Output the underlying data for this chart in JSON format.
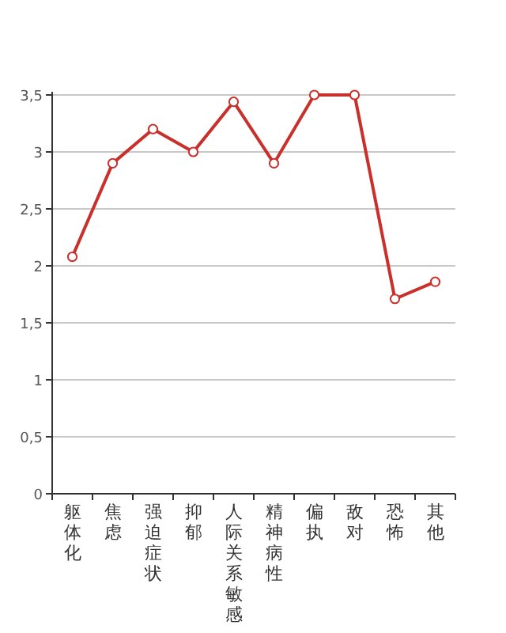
{
  "chart_data": {
    "type": "line",
    "categories": [
      "躯体化",
      "焦虑",
      "强迫症状",
      "抑郁",
      "人际关系敏感",
      "精神病性",
      "偏执",
      "敌对",
      "恐怖",
      "其他"
    ],
    "series": [
      {
        "color": "#c9302c",
        "values": [
          2.08,
          2.9,
          3.2,
          3.0,
          3.44,
          2.9,
          3.5,
          3.5,
          1.71,
          1.86
        ]
      }
    ],
    "ylim": [
      0,
      3.5
    ],
    "yticks": [
      0,
      {
        "value": 0.5,
        "label": "0,5"
      },
      1,
      {
        "value": 1.5,
        "label": "1,5"
      },
      2,
      {
        "value": 2.5,
        "label": "2,5"
      },
      3,
      {
        "value": 3.5,
        "label": "3,5"
      }
    ],
    "grid": "y",
    "marker": "circle",
    "line_style": "solid"
  }
}
